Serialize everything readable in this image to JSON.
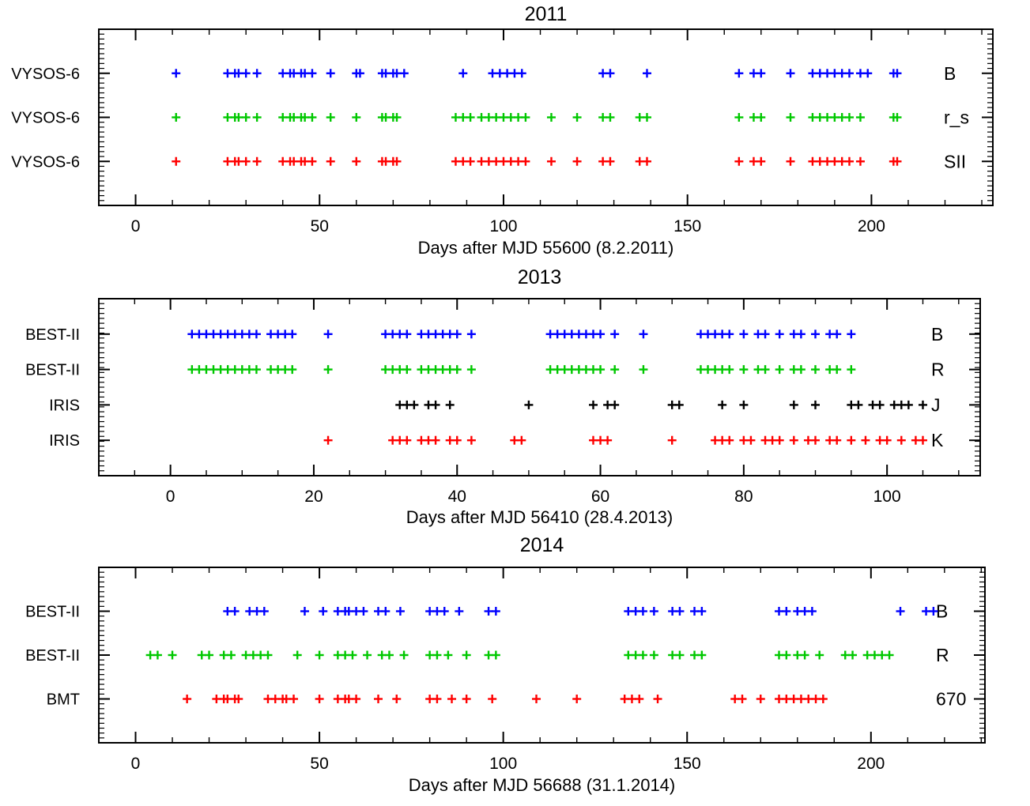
{
  "figure": {
    "background": "#ffffff",
    "box_color": "#000000"
  },
  "colors": {
    "blue": "#0000ff",
    "green": "#00c800",
    "red": "#ff0000",
    "black": "#000000"
  },
  "chart_data": [
    {
      "type": "scatter",
      "title": "2011",
      "xlabel": "Days after MJD 55600 (8.2.2011)",
      "xlim": [
        -10,
        233
      ],
      "xticks": [
        0,
        50,
        100,
        150,
        200
      ],
      "xtick_labels": [
        "0",
        "50",
        "100",
        "150",
        "200"
      ],
      "xtick_minor_step": 10,
      "marker": "+",
      "grid": false,
      "series": [
        {
          "instrument": "VYSOS-6",
          "label": "B",
          "color": "#0000ff",
          "x": [
            11,
            25,
            27,
            28,
            30,
            33,
            40,
            42,
            43,
            45,
            46,
            48,
            53,
            60,
            61,
            67,
            68,
            70,
            71,
            73,
            89,
            97,
            99,
            101,
            103,
            105,
            127,
            129,
            139,
            164,
            168,
            170,
            178,
            184,
            186,
            188,
            190,
            192,
            194,
            197,
            199,
            206,
            207
          ]
        },
        {
          "instrument": "VYSOS-6",
          "label": "r_s",
          "color": "#00c800",
          "x": [
            11,
            25,
            27,
            28,
            30,
            33,
            40,
            42,
            43,
            45,
            46,
            48,
            53,
            60,
            67,
            68,
            70,
            71,
            87,
            89,
            91,
            94,
            96,
            98,
            100,
            102,
            104,
            106,
            113,
            120,
            127,
            129,
            137,
            139,
            164,
            168,
            170,
            178,
            184,
            186,
            188,
            190,
            192,
            194,
            197,
            206,
            207
          ]
        },
        {
          "instrument": "VYSOS-6",
          "label": "SII",
          "color": "#ff0000",
          "x": [
            11,
            25,
            27,
            28,
            30,
            33,
            40,
            42,
            43,
            45,
            46,
            48,
            53,
            60,
            67,
            68,
            70,
            71,
            87,
            89,
            91,
            94,
            96,
            98,
            100,
            102,
            104,
            106,
            113,
            120,
            127,
            129,
            137,
            139,
            164,
            168,
            170,
            178,
            184,
            186,
            188,
            190,
            192,
            194,
            197,
            206,
            207
          ]
        }
      ]
    },
    {
      "type": "scatter",
      "title": "2013",
      "xlabel": "Days after MJD 56410 (28.4.2013)",
      "xlim": [
        -10,
        113
      ],
      "xticks": [
        0,
        20,
        40,
        60,
        80,
        100
      ],
      "xtick_labels": [
        "0",
        "20",
        "40",
        "60",
        "80",
        "100"
      ],
      "xtick_minor_step": 5,
      "marker": "+",
      "grid": false,
      "series": [
        {
          "instrument": "BEST-II",
          "label": "B",
          "color": "#0000ff",
          "x": [
            3,
            4,
            5,
            6,
            7,
            8,
            9,
            10,
            11,
            12,
            14,
            15,
            16,
            17,
            22,
            30,
            31,
            32,
            33,
            35,
            36,
            37,
            38,
            39,
            40,
            42,
            53,
            54,
            55,
            56,
            57,
            58,
            59,
            60,
            62,
            66,
            74,
            75,
            76,
            77,
            78,
            80,
            82,
            83,
            85,
            87,
            88,
            90,
            92,
            93,
            95
          ]
        },
        {
          "instrument": "BEST-II",
          "label": "R",
          "color": "#00c800",
          "x": [
            3,
            4,
            5,
            6,
            7,
            8,
            9,
            10,
            11,
            12,
            14,
            15,
            16,
            17,
            22,
            30,
            31,
            32,
            33,
            35,
            36,
            37,
            38,
            39,
            40,
            42,
            53,
            54,
            55,
            56,
            57,
            58,
            59,
            60,
            62,
            66,
            74,
            75,
            76,
            77,
            78,
            80,
            82,
            83,
            85,
            87,
            88,
            90,
            92,
            93,
            95
          ]
        },
        {
          "instrument": "IRIS",
          "label": "J",
          "color": "#000000",
          "x": [
            32,
            33,
            34,
            36,
            37,
            39,
            50,
            59,
            61,
            62,
            70,
            71,
            77,
            80,
            87,
            90,
            95,
            96,
            98,
            99,
            101,
            102,
            103,
            105
          ]
        },
        {
          "instrument": "IRIS",
          "label": "K",
          "color": "#ff0000",
          "x": [
            22,
            31,
            32,
            33,
            35,
            36,
            37,
            39,
            40,
            42,
            48,
            49,
            59,
            60,
            61,
            70,
            76,
            77,
            78,
            80,
            81,
            83,
            84,
            85,
            87,
            89,
            90,
            92,
            93,
            95,
            97,
            99,
            100,
            102,
            104,
            105
          ]
        }
      ]
    },
    {
      "type": "scatter",
      "title": "2014",
      "xlabel": "Days after MJD 56688 (31.1.2014)",
      "xlim": [
        -10,
        231
      ],
      "xticks": [
        0,
        50,
        100,
        150,
        200
      ],
      "xtick_labels": [
        "0",
        "50",
        "100",
        "150",
        "200"
      ],
      "xtick_minor_step": 10,
      "marker": "+",
      "grid": false,
      "series": [
        {
          "instrument": "BEST-II",
          "label": "B",
          "color": "#0000ff",
          "x": [
            25,
            27,
            31,
            33,
            35,
            46,
            51,
            55,
            57,
            58,
            60,
            62,
            66,
            68,
            72,
            80,
            82,
            84,
            88,
            96,
            98,
            134,
            136,
            138,
            141,
            146,
            148,
            152,
            154,
            175,
            177,
            180,
            182,
            184,
            208,
            215,
            217
          ]
        },
        {
          "instrument": "BEST-II",
          "label": "R",
          "color": "#00c800",
          "x": [
            4,
            6,
            10,
            18,
            20,
            24,
            26,
            30,
            32,
            34,
            36,
            44,
            50,
            55,
            57,
            59,
            63,
            67,
            69,
            73,
            80,
            82,
            85,
            90,
            96,
            98,
            134,
            136,
            138,
            141,
            146,
            148,
            152,
            154,
            175,
            177,
            180,
            182,
            186,
            193,
            195,
            199,
            201,
            203,
            205
          ]
        },
        {
          "instrument": "BMT",
          "label": "670",
          "color": "#ff0000",
          "x": [
            14,
            22,
            24,
            25,
            27,
            28,
            36,
            38,
            40,
            41,
            43,
            50,
            55,
            57,
            58,
            60,
            66,
            71,
            80,
            82,
            86,
            90,
            97,
            109,
            120,
            133,
            135,
            137,
            142,
            163,
            165,
            170,
            175,
            177,
            179,
            181,
            183,
            185,
            187
          ]
        }
      ]
    }
  ]
}
